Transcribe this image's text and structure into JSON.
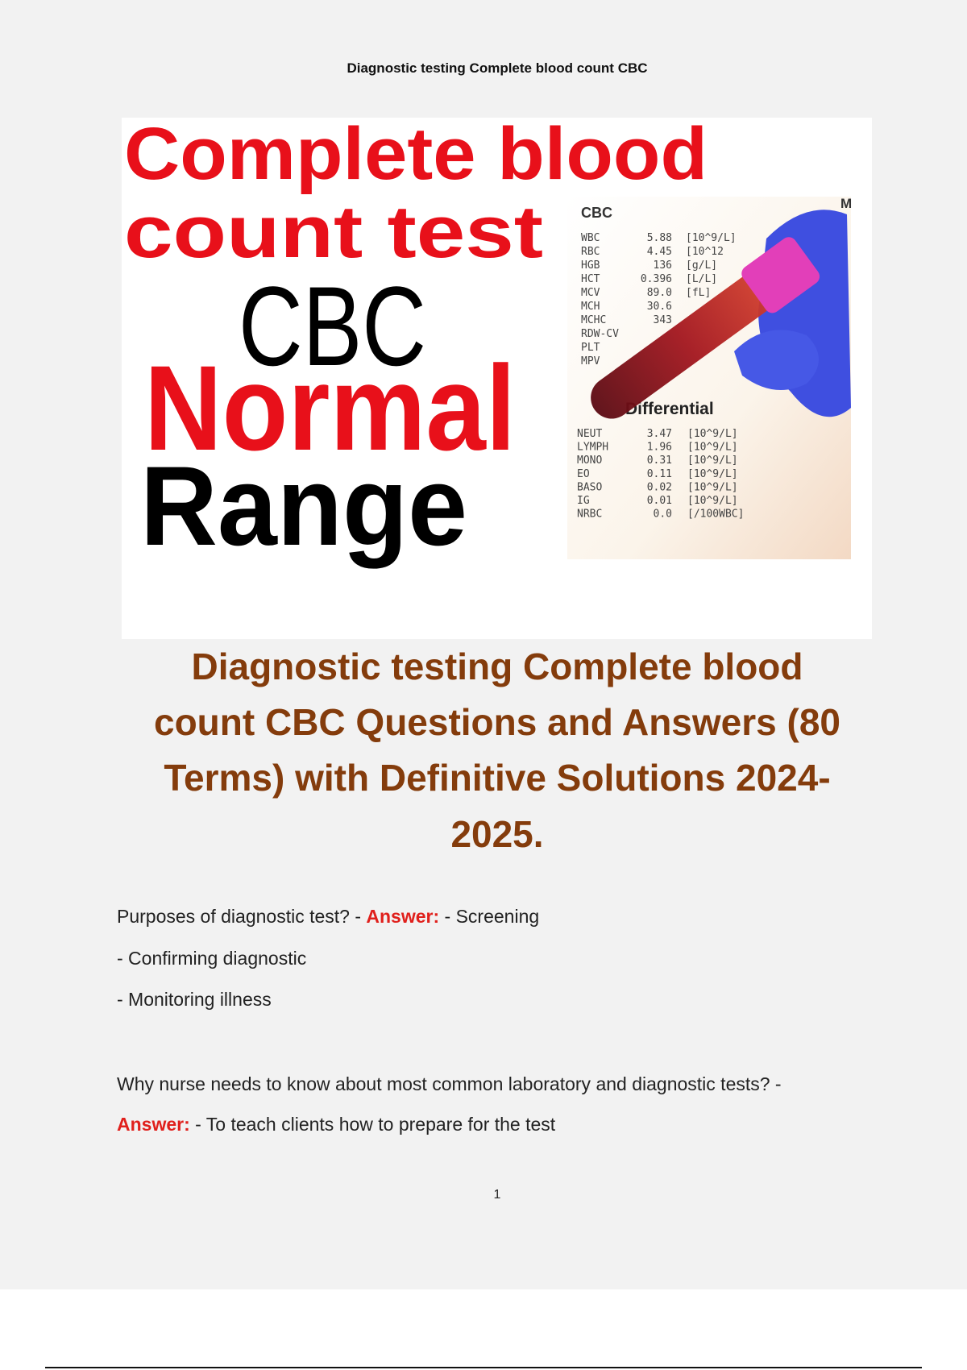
{
  "header": "Diagnostic testing Complete blood count CBC",
  "cover_image": {
    "headline": [
      "Complete blood",
      "count test"
    ],
    "cbc": "CBC",
    "normal": "Normal",
    "range": "Range",
    "corner_letter": "M",
    "printout": {
      "title": "CBC",
      "rows": [
        [
          "WBC",
          "5.88",
          "[10^9/L]"
        ],
        [
          "RBC",
          "4.45",
          "[10^12"
        ],
        [
          "HGB",
          "136",
          "[g/L]"
        ],
        [
          "HCT",
          "0.396",
          "[L/L]"
        ],
        [
          "MCV",
          "89.0",
          "[fL]"
        ],
        [
          "MCH",
          "30.6"
        ],
        [
          "MCHC",
          "343"
        ],
        [
          "RDW-CV"
        ],
        [
          "PLT"
        ],
        [
          "MPV"
        ]
      ],
      "differential_title": "Differential",
      "differential_rows": [
        [
          "NEUT",
          "3.47",
          "[10^9/L]"
        ],
        [
          "LYMPH",
          "1.96",
          "[10^9/L]"
        ],
        [
          "MONO",
          "0.31",
          "[10^9/L]"
        ],
        [
          "EO",
          "0.11",
          "[10^9/L]"
        ],
        [
          "BASO",
          "0.02",
          "[10^9/L]"
        ],
        [
          "IG",
          "0.01",
          "[10^9/L]"
        ],
        [
          "NRBC",
          "0.0",
          "[/100WBC]"
        ]
      ]
    }
  },
  "title_lines": [
    "Diagnostic testing Complete blood",
    "count CBC Questions and Answers (80",
    "Terms) with Definitive Solutions 2024-",
    "2025."
  ],
  "qa": [
    {
      "question": "Purposes of diagnostic test? -",
      "answer_label": "Answer:",
      "answer_lines": [
        "- Screening",
        "- Confirming diagnostic",
        "- Monitoring illness"
      ]
    },
    {
      "question": "Why nurse needs to know about most common laboratory and diagnostic tests? -",
      "answer_label": "Answer:",
      "answer_lines": [
        "- To teach clients how to prepare for the test"
      ]
    }
  ],
  "page_number": "1"
}
